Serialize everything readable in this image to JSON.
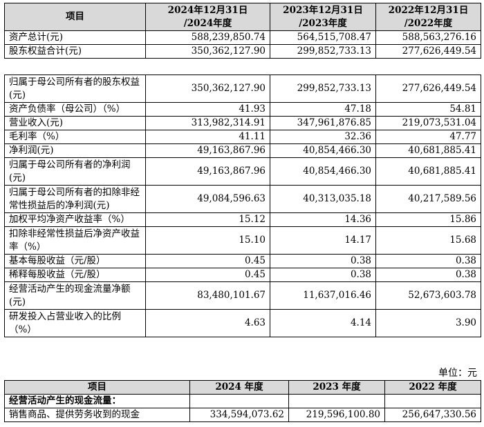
{
  "table1": {
    "headers": [
      {
        "line1": "项目",
        "line2": ""
      },
      {
        "line1": "2024年12月31日",
        "line2": "/2024年度"
      },
      {
        "line1": "2023年12月31日",
        "line2": "/2023年度"
      },
      {
        "line1": "2022年12月31日",
        "line2": "/2022年度"
      }
    ],
    "top_rows": [
      {
        "label": "资产总计(元)",
        "v2024": "588,239,850.74",
        "v2023": "564,515,708.47",
        "v2022": "588,563,276.16"
      },
      {
        "label": "股东权益合计(元)",
        "v2024": "350,362,127.90",
        "v2023": "299,852,733.13",
        "v2022": "277,626,449.54"
      }
    ],
    "rows": [
      {
        "label": "归属于母公司所有者的股东权益(元)",
        "v2024": "350,362,127.90",
        "v2023": "299,852,733.13",
        "v2022": "277,626,449.54",
        "tall": true
      },
      {
        "label": "资产负债率（母公司）（%）",
        "v2024": "41.93",
        "v2023": "47.18",
        "v2022": "54.81",
        "tall": false
      },
      {
        "label": "营业收入(元)",
        "v2024": "313,982,314.91",
        "v2023": "347,961,876.85",
        "v2022": "219,073,531.04",
        "tall": false
      },
      {
        "label": "毛利率（%）",
        "v2024": "41.11",
        "v2023": "32.36",
        "v2022": "47.77",
        "tall": false
      },
      {
        "label": "净利润(元)",
        "v2024": "49,163,867.96",
        "v2023": "40,854,466.30",
        "v2022": "40,681,885.41",
        "tall": false
      },
      {
        "label": "归属于母公司所有者的净利润(元)",
        "v2024": "49,163,867.96",
        "v2023": "40,854,466.30",
        "v2022": "40,681,885.41",
        "tall": true
      },
      {
        "label": "归属于母公司所有者的扣除非经常性损益后的净利润(元)",
        "v2024": "49,084,596.63",
        "v2023": "40,313,035.18",
        "v2022": "40,217,589.56",
        "tall": true
      },
      {
        "label": "加权平均净资产收益率（%）",
        "v2024": "15.12",
        "v2023": "14.36",
        "v2022": "15.86",
        "tall": false
      },
      {
        "label": "扣除非经常性损益后净资产收益率（%）",
        "v2024": "15.10",
        "v2023": "14.17",
        "v2022": "15.68",
        "tall": true
      },
      {
        "label": "基本每股收益（元/股）",
        "v2024": "0.45",
        "v2023": "0.38",
        "v2022": "0.38",
        "tall": false
      },
      {
        "label": "稀释每股收益（元/股）",
        "v2024": "0.45",
        "v2023": "0.38",
        "v2022": "0.38",
        "tall": false
      },
      {
        "label": "经营活动产生的现金流量净额(元)",
        "v2024": "83,480,101.67",
        "v2023": "11,637,016.46",
        "v2022": "52,673,603.78",
        "tall": true
      },
      {
        "label": "研发投入占营业收入的比例（%）",
        "v2024": "4.63",
        "v2023": "4.14",
        "v2022": "3.90",
        "tall": true
      }
    ]
  },
  "unit_label": "单位：元",
  "table2": {
    "headers": [
      "项目",
      "2024 年度",
      "2023 年度",
      "2022 年度"
    ],
    "section_title": "经营活动产生的现金流量：",
    "rows": [
      {
        "label": "销售商品、提供劳务收到的现金",
        "v2024": "334,594,073.62",
        "v2023": "219,596,100.80",
        "v2022": "256,647,330.56"
      }
    ]
  }
}
